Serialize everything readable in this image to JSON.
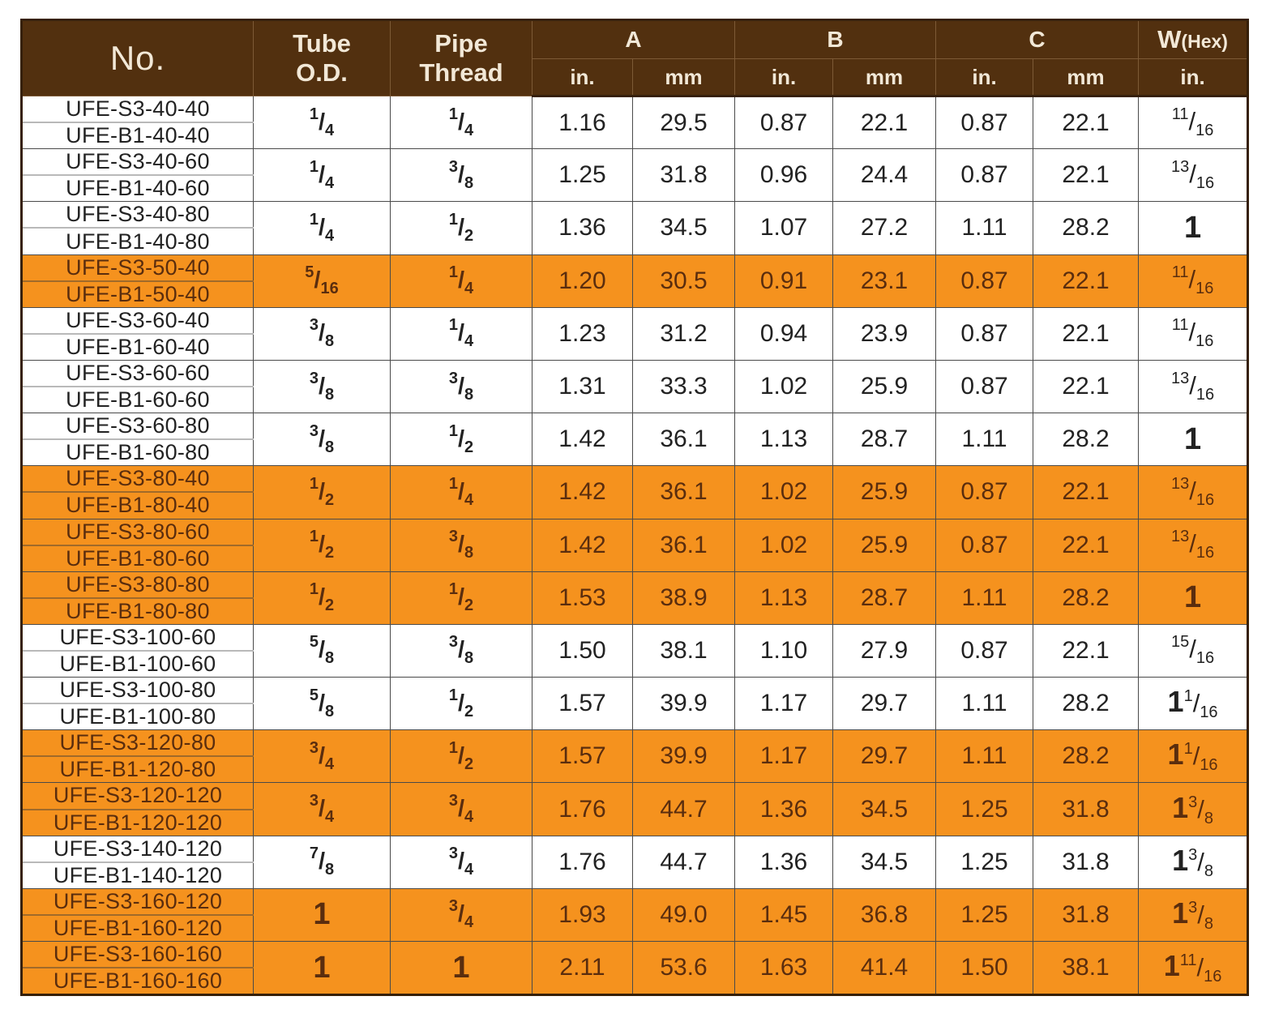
{
  "colors": {
    "header_bg": "#52300F",
    "header_text": "#F2E8D7",
    "row_highlight_bg": "#F5921E",
    "row_text": "#222222",
    "highlight_row_text": "#5A2D0E",
    "grid_line": "#4A4A4A"
  },
  "table": {
    "header": {
      "no": "No.",
      "tube_od_line1": "Tube",
      "tube_od_line2": "O.D.",
      "pipe_thread_line1": "Pipe",
      "pipe_thread_line2": "Thread",
      "a": "A",
      "b": "B",
      "c": "C",
      "w": "W",
      "w_suffix": "(Hex)",
      "in_label": "in.",
      "mm_label": "mm"
    },
    "rows": [
      {
        "no1": "UFE-S3-40-40",
        "no2": "UFE-B1-40-40",
        "tube_od": "1/4",
        "pipe_thread": "1/4",
        "a_in": "1.16",
        "a_mm": "29.5",
        "b_in": "0.87",
        "b_mm": "22.1",
        "c_in": "0.87",
        "c_mm": "22.1",
        "w_hex": "11/16",
        "highlight": false
      },
      {
        "no1": "UFE-S3-40-60",
        "no2": "UFE-B1-40-60",
        "tube_od": "1/4",
        "pipe_thread": "3/8",
        "a_in": "1.25",
        "a_mm": "31.8",
        "b_in": "0.96",
        "b_mm": "24.4",
        "c_in": "0.87",
        "c_mm": "22.1",
        "w_hex": "13/16",
        "highlight": false
      },
      {
        "no1": "UFE-S3-40-80",
        "no2": "UFE-B1-40-80",
        "tube_od": "1/4",
        "pipe_thread": "1/2",
        "a_in": "1.36",
        "a_mm": "34.5",
        "b_in": "1.07",
        "b_mm": "27.2",
        "c_in": "1.11",
        "c_mm": "28.2",
        "w_hex": "1",
        "highlight": false
      },
      {
        "no1": "UFE-S3-50-40",
        "no2": "UFE-B1-50-40",
        "tube_od": "5/16",
        "pipe_thread": "1/4",
        "a_in": "1.20",
        "a_mm": "30.5",
        "b_in": "0.91",
        "b_mm": "23.1",
        "c_in": "0.87",
        "c_mm": "22.1",
        "w_hex": "11/16",
        "highlight": true
      },
      {
        "no1": "UFE-S3-60-40",
        "no2": "UFE-B1-60-40",
        "tube_od": "3/8",
        "pipe_thread": "1/4",
        "a_in": "1.23",
        "a_mm": "31.2",
        "b_in": "0.94",
        "b_mm": "23.9",
        "c_in": "0.87",
        "c_mm": "22.1",
        "w_hex": "11/16",
        "highlight": false
      },
      {
        "no1": "UFE-S3-60-60",
        "no2": "UFE-B1-60-60",
        "tube_od": "3/8",
        "pipe_thread": "3/8",
        "a_in": "1.31",
        "a_mm": "33.3",
        "b_in": "1.02",
        "b_mm": "25.9",
        "c_in": "0.87",
        "c_mm": "22.1",
        "w_hex": "13/16",
        "highlight": false
      },
      {
        "no1": "UFE-S3-60-80",
        "no2": "UFE-B1-60-80",
        "tube_od": "3/8",
        "pipe_thread": "1/2",
        "a_in": "1.42",
        "a_mm": "36.1",
        "b_in": "1.13",
        "b_mm": "28.7",
        "c_in": "1.11",
        "c_mm": "28.2",
        "w_hex": "1",
        "highlight": false
      },
      {
        "no1": "UFE-S3-80-40",
        "no2": "UFE-B1-80-40",
        "tube_od": "1/2",
        "pipe_thread": "1/4",
        "a_in": "1.42",
        "a_mm": "36.1",
        "b_in": "1.02",
        "b_mm": "25.9",
        "c_in": "0.87",
        "c_mm": "22.1",
        "w_hex": "13/16",
        "highlight": true
      },
      {
        "no1": "UFE-S3-80-60",
        "no2": "UFE-B1-80-60",
        "tube_od": "1/2",
        "pipe_thread": "3/8",
        "a_in": "1.42",
        "a_mm": "36.1",
        "b_in": "1.02",
        "b_mm": "25.9",
        "c_in": "0.87",
        "c_mm": "22.1",
        "w_hex": "13/16",
        "highlight": true
      },
      {
        "no1": "UFE-S3-80-80",
        "no2": "UFE-B1-80-80",
        "tube_od": "1/2",
        "pipe_thread": "1/2",
        "a_in": "1.53",
        "a_mm": "38.9",
        "b_in": "1.13",
        "b_mm": "28.7",
        "c_in": "1.11",
        "c_mm": "28.2",
        "w_hex": "1",
        "highlight": true
      },
      {
        "no1": "UFE-S3-100-60",
        "no2": "UFE-B1-100-60",
        "tube_od": "5/8",
        "pipe_thread": "3/8",
        "a_in": "1.50",
        "a_mm": "38.1",
        "b_in": "1.10",
        "b_mm": "27.9",
        "c_in": "0.87",
        "c_mm": "22.1",
        "w_hex": "15/16",
        "highlight": false
      },
      {
        "no1": "UFE-S3-100-80",
        "no2": "UFE-B1-100-80",
        "tube_od": "5/8",
        "pipe_thread": "1/2",
        "a_in": "1.57",
        "a_mm": "39.9",
        "b_in": "1.17",
        "b_mm": "29.7",
        "c_in": "1.11",
        "c_mm": "28.2",
        "w_hex": "1 1/16",
        "highlight": false
      },
      {
        "no1": "UFE-S3-120-80",
        "no2": "UFE-B1-120-80",
        "tube_od": "3/4",
        "pipe_thread": "1/2",
        "a_in": "1.57",
        "a_mm": "39.9",
        "b_in": "1.17",
        "b_mm": "29.7",
        "c_in": "1.11",
        "c_mm": "28.2",
        "w_hex": "1 1/16",
        "highlight": true
      },
      {
        "no1": "UFE-S3-120-120",
        "no2": "UFE-B1-120-120",
        "tube_od": "3/4",
        "pipe_thread": "3/4",
        "a_in": "1.76",
        "a_mm": "44.7",
        "b_in": "1.36",
        "b_mm": "34.5",
        "c_in": "1.25",
        "c_mm": "31.8",
        "w_hex": "1 3/8",
        "highlight": true
      },
      {
        "no1": "UFE-S3-140-120",
        "no2": "UFE-B1-140-120",
        "tube_od": "7/8",
        "pipe_thread": "3/4",
        "a_in": "1.76",
        "a_mm": "44.7",
        "b_in": "1.36",
        "b_mm": "34.5",
        "c_in": "1.25",
        "c_mm": "31.8",
        "w_hex": "1 3/8",
        "highlight": false
      },
      {
        "no1": "UFE-S3-160-120",
        "no2": "UFE-B1-160-120",
        "tube_od": "1",
        "pipe_thread": "3/4",
        "a_in": "1.93",
        "a_mm": "49.0",
        "b_in": "1.45",
        "b_mm": "36.8",
        "c_in": "1.25",
        "c_mm": "31.8",
        "w_hex": "1 3/8",
        "highlight": true
      },
      {
        "no1": "UFE-S3-160-160",
        "no2": "UFE-B1-160-160",
        "tube_od": "1",
        "pipe_thread": "1",
        "a_in": "2.11",
        "a_mm": "53.6",
        "b_in": "1.63",
        "b_mm": "41.4",
        "c_in": "1.50",
        "c_mm": "38.1",
        "w_hex": "1 11/16",
        "highlight": true
      }
    ]
  }
}
